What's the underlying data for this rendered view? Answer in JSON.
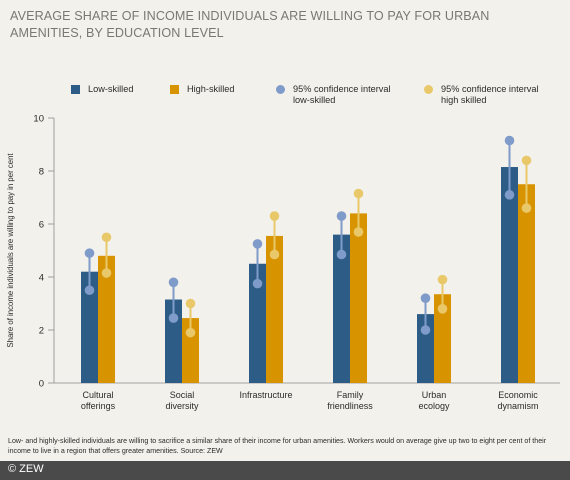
{
  "title": "AVERAGE SHARE OF INCOME INDIVIDUALS ARE WILLING TO PAY FOR URBAN AMENITIES, BY EDUCATION LEVEL",
  "legend": {
    "low": "Low-skilled",
    "high": "High-skilled",
    "ci_low_line1": "95% confidence interval",
    "ci_low_line2": "low-skilled",
    "ci_high_line1": "95% confidence interval",
    "ci_high_line2": "high skilled"
  },
  "colors": {
    "low": "#2d5d86",
    "high": "#d89300",
    "ci_low": "#7f9bc9",
    "ci_high": "#e9c86a",
    "axis": "#8a8a8a",
    "background": "#f3f1ec"
  },
  "note": "Low- and highly-skilled individuals are willing to sacrifice a similar share of their income for urban amenities. Workers would on average give up two to eight per cent of their income to live in a region that offers greater amenities. Source: ZEW",
  "credit": "© ZEW",
  "chart_data": {
    "type": "bar",
    "title": "AVERAGE SHARE OF INCOME INDIVIDUALS ARE WILLING TO PAY FOR URBAN AMENITIES, BY EDUCATION LEVEL",
    "ylabel": "Share of income individuals are willing to pay in per cent",
    "xlabel": "",
    "ylim": [
      0,
      10
    ],
    "yticks": [
      0,
      2,
      4,
      6,
      8,
      10
    ],
    "categories": [
      [
        "Cultural",
        "offerings"
      ],
      [
        "Social",
        "diversity"
      ],
      [
        "Infrastructure"
      ],
      [
        "Family",
        "friendliness"
      ],
      [
        "Urban",
        "ecology"
      ],
      [
        "Economic",
        "dynamism"
      ]
    ],
    "series": [
      {
        "name": "Low-skilled",
        "values": [
          4.2,
          3.15,
          4.5,
          5.6,
          2.6,
          8.15
        ],
        "ci": [
          [
            3.5,
            4.9
          ],
          [
            2.45,
            3.8
          ],
          [
            3.75,
            5.25
          ],
          [
            4.85,
            6.3
          ],
          [
            2.0,
            3.2
          ],
          [
            7.1,
            9.15
          ]
        ]
      },
      {
        "name": "High-skilled",
        "values": [
          4.8,
          2.45,
          5.55,
          6.4,
          3.35,
          7.5
        ],
        "ci": [
          [
            4.15,
            5.5
          ],
          [
            1.9,
            3.0
          ],
          [
            4.85,
            6.3
          ],
          [
            5.7,
            7.15
          ],
          [
            2.8,
            3.9
          ],
          [
            6.6,
            8.4
          ]
        ]
      }
    ],
    "legend_position": "top",
    "grid": false
  }
}
